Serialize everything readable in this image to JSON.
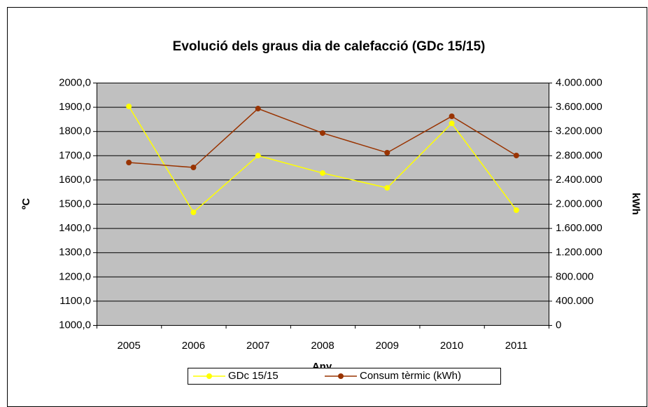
{
  "chart_data": {
    "type": "line",
    "title": "Evolució dels graus dia de calefacció (GDc 15/15)",
    "x_label": "Any",
    "y_label": "ºC",
    "y2_label": "kWh",
    "categories": [
      "2005",
      "2006",
      "2007",
      "2008",
      "2009",
      "2010",
      "2011"
    ],
    "series": [
      {
        "name": "GDc 15/15",
        "color": "#ffff00",
        "values": [
          1902,
          1465,
          1699,
          1627,
          1566,
          1832,
          1474
        ]
      },
      {
        "name": "Consum tèrmic (kWh)",
        "color": "#993300",
        "axis": "y2",
        "values": [
          2682000,
          2601000,
          3572000,
          3168000,
          2844000,
          3445000,
          2798000
        ]
      }
    ],
    "ylim": [
      1000,
      2000
    ],
    "yticks": [
      {
        "value": 1000,
        "label": "1000,0"
      },
      {
        "value": 1100,
        "label": "1100,0"
      },
      {
        "value": 1200,
        "label": "1200,0"
      },
      {
        "value": 1300,
        "label": "1300,0"
      },
      {
        "value": 1400,
        "label": "1400,0"
      },
      {
        "value": 1500,
        "label": "1500,0"
      },
      {
        "value": 1600,
        "label": "1600,0"
      },
      {
        "value": 1700,
        "label": "1700,0"
      },
      {
        "value": 1800,
        "label": "1800,0"
      },
      {
        "value": 1900,
        "label": "1900,0"
      },
      {
        "value": 2000,
        "label": "2000,0"
      }
    ],
    "y2lim": [
      0,
      4000000
    ],
    "y2ticks": [
      0,
      {
        "value": 400000,
        "label": "400.000"
      },
      {
        "value": 800000,
        "label": "800.000"
      },
      {
        "value": 1200000,
        "label": "1.200.000"
      },
      {
        "value": 1600000,
        "label": "1.600.000"
      },
      {
        "value": 2000000,
        "label": "2.000.000"
      },
      {
        "value": 2400000,
        "label": "2.400.000"
      },
      {
        "value": 2800000,
        "label": "2.800.000"
      },
      {
        "value": 3200000,
        "label": "3.200.000"
      },
      {
        "value": 3600000,
        "label": "3.600.000"
      },
      {
        "value": 4000000,
        "label": "4.000.000"
      }
    ],
    "grid": true,
    "legend": "bottom"
  }
}
